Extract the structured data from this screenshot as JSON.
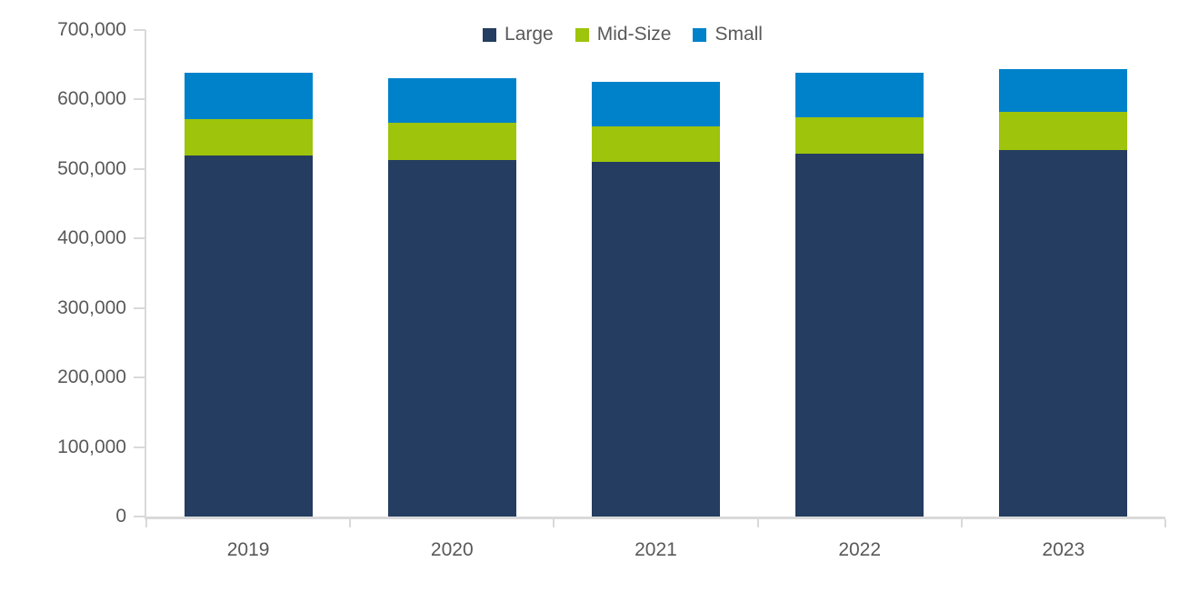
{
  "chart_data": {
    "type": "bar",
    "stacked": true,
    "title": "",
    "xlabel": "",
    "ylabel": "",
    "categories": [
      "2019",
      "2020",
      "2021",
      "2022",
      "2023"
    ],
    "series": [
      {
        "name": "Large",
        "color": "#243d60",
        "values": [
          519000,
          513000,
          510000,
          522000,
          527000
        ]
      },
      {
        "name": "Mid-Size",
        "color": "#9ec40b",
        "values": [
          53000,
          53000,
          51000,
          53000,
          55000
        ]
      },
      {
        "name": "Small",
        "color": "#0082cb",
        "values": [
          66000,
          65000,
          64000,
          63000,
          62000
        ]
      }
    ],
    "totals": [
      638000,
      631000,
      625000,
      638000,
      644000
    ],
    "ylim": [
      0,
      700000
    ],
    "y_tick_step": 100000,
    "y_tick_labels": [
      "0",
      "100,000",
      "200,000",
      "300,000",
      "400,000",
      "500,000",
      "600,000",
      "700,000"
    ],
    "legend_position": "top",
    "grid": false,
    "colors": {
      "axis_line": "#d9d9d9",
      "tick_label": "#595959",
      "background": "#ffffff"
    }
  }
}
